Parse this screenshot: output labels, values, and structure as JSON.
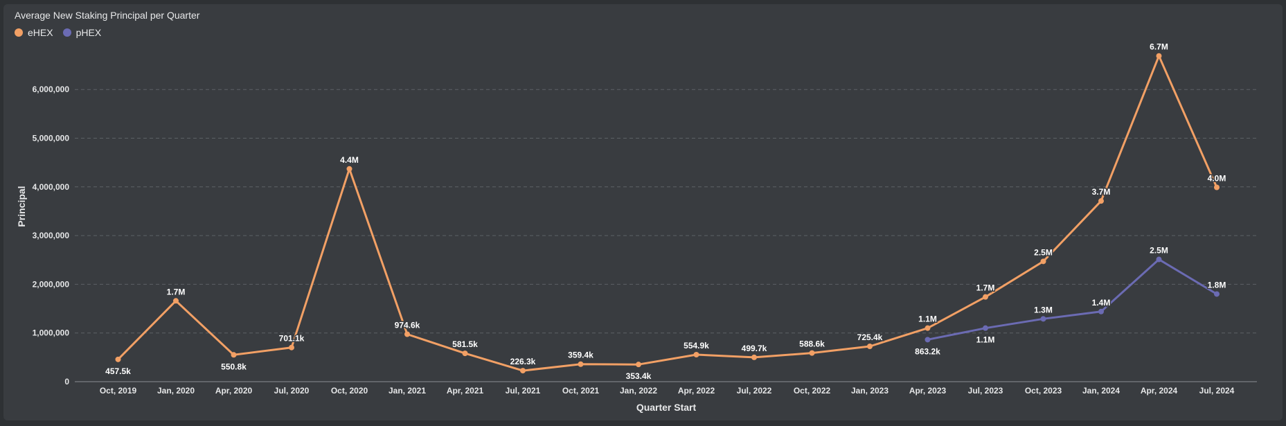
{
  "chart_data": {
    "type": "line",
    "title": "Average New Staking Principal per Quarter",
    "xlabel": "Quarter Start",
    "ylabel": "Principal",
    "categories": [
      "Oct, 2019",
      "Jan, 2020",
      "Apr, 2020",
      "Jul, 2020",
      "Oct, 2020",
      "Jan, 2021",
      "Apr, 2021",
      "Jul, 2021",
      "Oct, 2021",
      "Jan, 2022",
      "Apr, 2022",
      "Jul, 2022",
      "Oct, 2022",
      "Jan, 2023",
      "Apr, 2023",
      "Jul, 2023",
      "Oct, 2023",
      "Jan, 2024",
      "Apr, 2024",
      "Jul, 2024"
    ],
    "yticks": [
      "0",
      "1,000,000",
      "2,000,000",
      "3,000,000",
      "4,000,000",
      "5,000,000",
      "6,000,000"
    ],
    "ylim": [
      0,
      6700000
    ],
    "grid": true,
    "legend_position": "top-left",
    "series": [
      {
        "name": "eHEX",
        "color": "#f2a065",
        "values": [
          457500,
          1660000,
          550800,
          701100,
          4370000,
          974600,
          581500,
          226300,
          359400,
          353400,
          554900,
          499700,
          588600,
          725400,
          1100000,
          1740000,
          2470000,
          3710000,
          6690000,
          3990000
        ],
        "labels": [
          "457.5k",
          "1.7M",
          "550.8k",
          "701.1k",
          "4.4M",
          "974.6k",
          "581.5k",
          "226.3k",
          "359.4k",
          "353.4k",
          "554.9k",
          "499.7k",
          "588.6k",
          "725.4k",
          "1.1M",
          "1.7M",
          "2.5M",
          "3.7M",
          "6.7M",
          "4.0M"
        ]
      },
      {
        "name": "pHEX",
        "color": "#6b6bb3",
        "values": [
          null,
          null,
          null,
          null,
          null,
          null,
          null,
          null,
          null,
          null,
          null,
          null,
          null,
          null,
          863200,
          1100000,
          1290000,
          1440000,
          2510000,
          1800000
        ],
        "labels": [
          null,
          null,
          null,
          null,
          null,
          null,
          null,
          null,
          null,
          null,
          null,
          null,
          null,
          null,
          "863.2k",
          "1.1M",
          "1.3M",
          "1.4M",
          "2.5M",
          "1.8M"
        ]
      }
    ]
  }
}
